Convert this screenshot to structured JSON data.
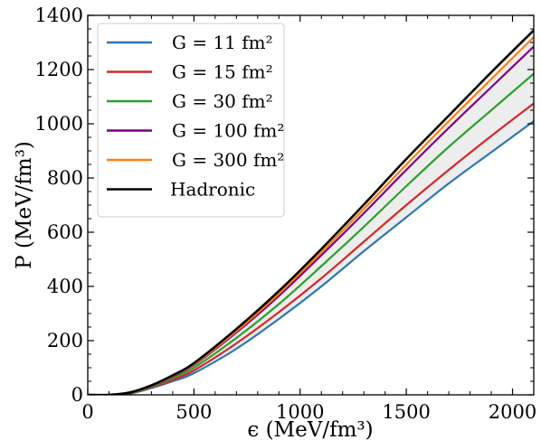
{
  "chart_data": {
    "type": "line",
    "xlabel": "ϵ (MeV/fm³)",
    "ylabel": "P (MeV/fm³)",
    "xlim": [
      0,
      2100
    ],
    "ylim": [
      0,
      1400
    ],
    "xticks": [
      0,
      500,
      1000,
      1500,
      2000
    ],
    "yticks": [
      0,
      200,
      400,
      600,
      800,
      1000,
      1200,
      1400
    ],
    "xtick_labels": [
      "0",
      "500",
      "1000",
      "1500",
      "2000"
    ],
    "ytick_labels": [
      "0",
      "200",
      "400",
      "600",
      "800",
      "1000",
      "1200",
      "1400"
    ],
    "grid": false,
    "legend_position": "top-left",
    "shaded_band": {
      "between": [
        "G = 11 fm²",
        "G = 300 fm²"
      ],
      "color": "#ededed"
    },
    "series": [
      {
        "name": "G = 11 fm²",
        "color": "#2d77b4",
        "x": [
          0,
          100,
          200,
          300,
          400,
          500,
          700,
          900,
          1100,
          1300,
          1500,
          1700,
          1900,
          2100
        ],
        "y": [
          0,
          0,
          5,
          25,
          50,
          80,
          170,
          280,
          400,
          530,
          655,
          780,
          895,
          1010
        ]
      },
      {
        "name": "G = 15 fm²",
        "color": "#d62728",
        "x": [
          0,
          100,
          200,
          300,
          400,
          500,
          700,
          900,
          1100,
          1300,
          1500,
          1700,
          1900,
          2100
        ],
        "y": [
          0,
          0,
          6,
          27,
          55,
          90,
          190,
          305,
          430,
          565,
          700,
          830,
          955,
          1075
        ]
      },
      {
        "name": "G = 30 fm²",
        "color": "#2ca02c",
        "x": [
          0,
          100,
          200,
          300,
          400,
          500,
          700,
          900,
          1100,
          1300,
          1500,
          1700,
          1900,
          2100
        ],
        "y": [
          0,
          0,
          7,
          30,
          62,
          100,
          210,
          335,
          475,
          620,
          770,
          915,
          1050,
          1185
        ]
      },
      {
        "name": "G = 100 fm²",
        "color": "#800080",
        "x": [
          0,
          100,
          200,
          300,
          400,
          500,
          700,
          900,
          1100,
          1300,
          1500,
          1700,
          1900,
          2100
        ],
        "y": [
          0,
          0,
          8,
          33,
          68,
          110,
          230,
          365,
          515,
          670,
          830,
          985,
          1135,
          1285
        ]
      },
      {
        "name": "G = 300 fm²",
        "color": "#ff7f0e",
        "x": [
          0,
          100,
          200,
          300,
          400,
          500,
          700,
          900,
          1100,
          1300,
          1500,
          1700,
          1900,
          2100
        ],
        "y": [
          0,
          0,
          8,
          34,
          70,
          113,
          235,
          373,
          526,
          686,
          850,
          1010,
          1165,
          1320
        ]
      },
      {
        "name": "Hadronic",
        "color": "#000000",
        "x": [
          0,
          100,
          200,
          300,
          400,
          500,
          700,
          900,
          1100,
          1300,
          1500,
          1700,
          1900,
          2100
        ],
        "y": [
          0,
          0,
          9,
          35,
          72,
          117,
          243,
          383,
          538,
          702,
          870,
          1030,
          1190,
          1345
        ]
      }
    ]
  }
}
